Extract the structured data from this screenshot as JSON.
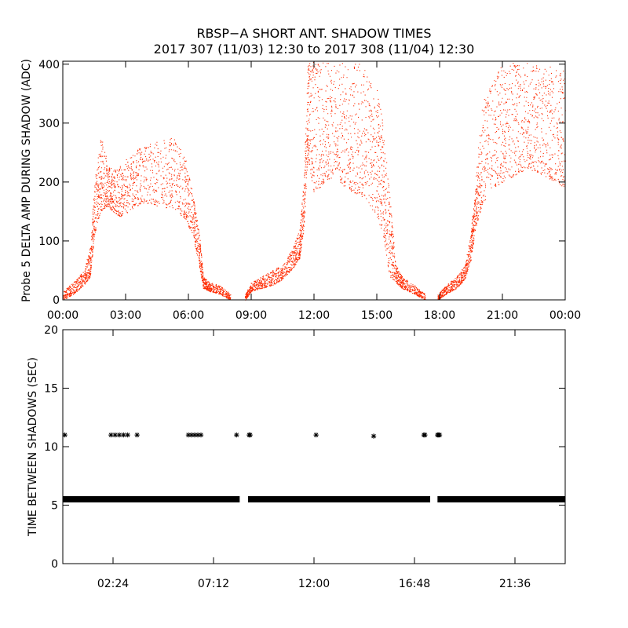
{
  "title_line1": "RBSP−A SHORT ANT. SHADOW TIMES",
  "title_line2": "2017 307 (11/03) 12:30 to 2017 308 (11/04) 12:30",
  "chart_data": [
    {
      "type": "scatter",
      "ylabel": "Probe 5 DELTA AMP DURING SHADOW (ADC)",
      "xlim": [
        0,
        24
      ],
      "ylim": [
        0,
        405
      ],
      "x_ticks": [
        0,
        3,
        6,
        9,
        12,
        15,
        18,
        21,
        24
      ],
      "x_tick_labels": [
        "00:00",
        "03:00",
        "06:00",
        "09:00",
        "12:00",
        "15:00",
        "18:00",
        "21:00",
        "00:00"
      ],
      "y_ticks": [
        0,
        100,
        200,
        300,
        400
      ],
      "y_tick_labels": [
        "0",
        "100",
        "200",
        "300",
        "400"
      ],
      "color": "#ff2a00",
      "envelope_hours": [
        0,
        0.5,
        1.0,
        1.3,
        1.5,
        1.8,
        2.1,
        2.4,
        2.8,
        3.3,
        3.8,
        4.5,
        5.2,
        5.8,
        6.2,
        6.5,
        6.7,
        7.0,
        7.5,
        8.0,
        8.4,
        8.7,
        9.0,
        9.5,
        10.0,
        10.5,
        11.0,
        11.3,
        11.5,
        11.7,
        12.0,
        12.5,
        13.0,
        13.5,
        14.0,
        14.5,
        15.0,
        15.3,
        15.6,
        15.9,
        16.2,
        16.8,
        17.3,
        17.7,
        17.9,
        18.3,
        18.8,
        19.2,
        19.5,
        19.7,
        20.0,
        20.5,
        21.0,
        21.5,
        22.0,
        22.5,
        23.0,
        23.5,
        24.0
      ],
      "envelope_low": [
        0,
        10,
        25,
        40,
        110,
        150,
        160,
        150,
        140,
        155,
        165,
        160,
        155,
        140,
        110,
        60,
        20,
        15,
        10,
        0,
        null,
        0,
        15,
        20,
        25,
        35,
        55,
        70,
        120,
        240,
        180,
        200,
        210,
        190,
        180,
        170,
        140,
        110,
        40,
        30,
        20,
        10,
        0,
        null,
        0,
        10,
        20,
        35,
        70,
        120,
        160,
        190,
        200,
        210,
        220,
        220,
        210,
        200,
        190
      ],
      "envelope_high": [
        15,
        30,
        50,
        90,
        200,
        280,
        240,
        220,
        230,
        250,
        260,
        270,
        280,
        250,
        180,
        120,
        40,
        30,
        25,
        10,
        null,
        10,
        30,
        40,
        50,
        60,
        90,
        120,
        200,
        405,
        405,
        405,
        405,
        405,
        405,
        390,
        360,
        300,
        180,
        60,
        40,
        25,
        10,
        null,
        10,
        25,
        40,
        60,
        120,
        200,
        330,
        380,
        400,
        405,
        405,
        405,
        400,
        395,
        390
      ]
    },
    {
      "type": "scatter",
      "ylabel": "TIME BETWEEN SHADOWS (SEC)",
      "xlim": [
        0,
        24
      ],
      "ylim": [
        0,
        20
      ],
      "x_ticks": [
        2.4,
        7.2,
        12,
        16.8,
        21.6
      ],
      "x_tick_labels": [
        "02:24",
        "07:12",
        "12:00",
        "16:48",
        "21:36"
      ],
      "y_ticks": [
        0,
        5,
        10,
        15,
        20
      ],
      "y_tick_labels": [
        "0",
        "5",
        "10",
        "15",
        "20"
      ],
      "baseline_value": 5.5,
      "baseline_segments": [
        [
          0,
          8.45
        ],
        [
          8.85,
          17.55
        ],
        [
          17.9,
          24
        ]
      ],
      "outliers_x": [
        0.1,
        2.3,
        2.5,
        2.7,
        2.9,
        3.1,
        3.55,
        6.0,
        6.15,
        6.3,
        6.45,
        6.6,
        8.3,
        8.9,
        8.95,
        12.1,
        14.85,
        17.25,
        17.3,
        17.9,
        17.95,
        18.0
      ],
      "outliers_y": [
        11,
        11,
        11,
        11,
        11,
        11,
        11,
        11,
        11,
        11,
        11,
        11,
        11,
        11,
        11,
        11,
        10.9,
        11,
        11,
        11,
        11,
        11
      ]
    }
  ]
}
